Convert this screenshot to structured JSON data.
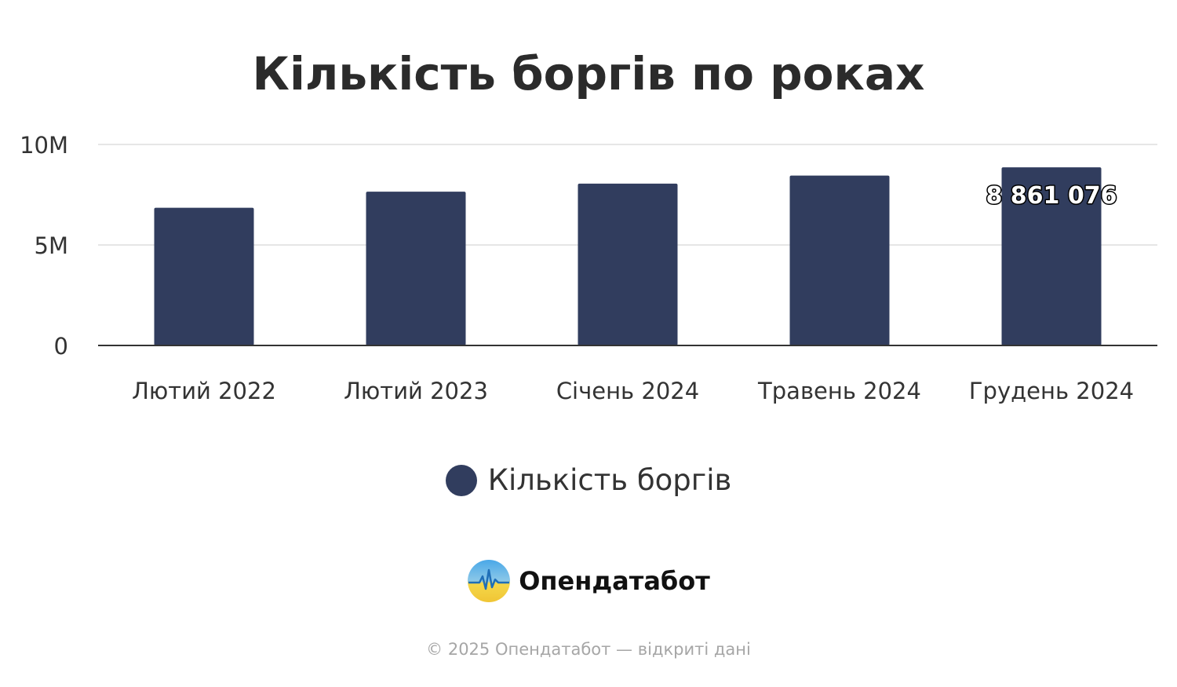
{
  "chart_data": {
    "type": "bar",
    "title": "Кількість боргів по роках",
    "categories": [
      "Лютий 2022",
      "Лютий 2023",
      "Січень 2024",
      "Травень 2024",
      "Грудень 2024"
    ],
    "series": [
      {
        "name": "Кількість боргів",
        "values": [
          6850000,
          7650000,
          8050000,
          8450000,
          8861076
        ],
        "color": "#313d5e"
      }
    ],
    "data_labels": [
      "",
      "",
      "",
      "",
      "8 861 076"
    ],
    "ylim": [
      0,
      10000000
    ],
    "yticks": [
      {
        "value": 0,
        "label": "0"
      },
      {
        "value": 5000000,
        "label": "5M"
      },
      {
        "value": 10000000,
        "label": "10M"
      }
    ],
    "xlabel": "",
    "ylabel": "",
    "grid": true,
    "legend_position": "bottom"
  },
  "brand": {
    "name": "Опендатабот",
    "logo_icon": "opendatabot-logo-icon"
  },
  "footer": {
    "text": "© 2025 Опендатабот — відкриті дані"
  },
  "colors": {
    "bar": "#313d5e",
    "grid": "#e6e6e6",
    "axis": "#333333",
    "text": "#333333"
  }
}
